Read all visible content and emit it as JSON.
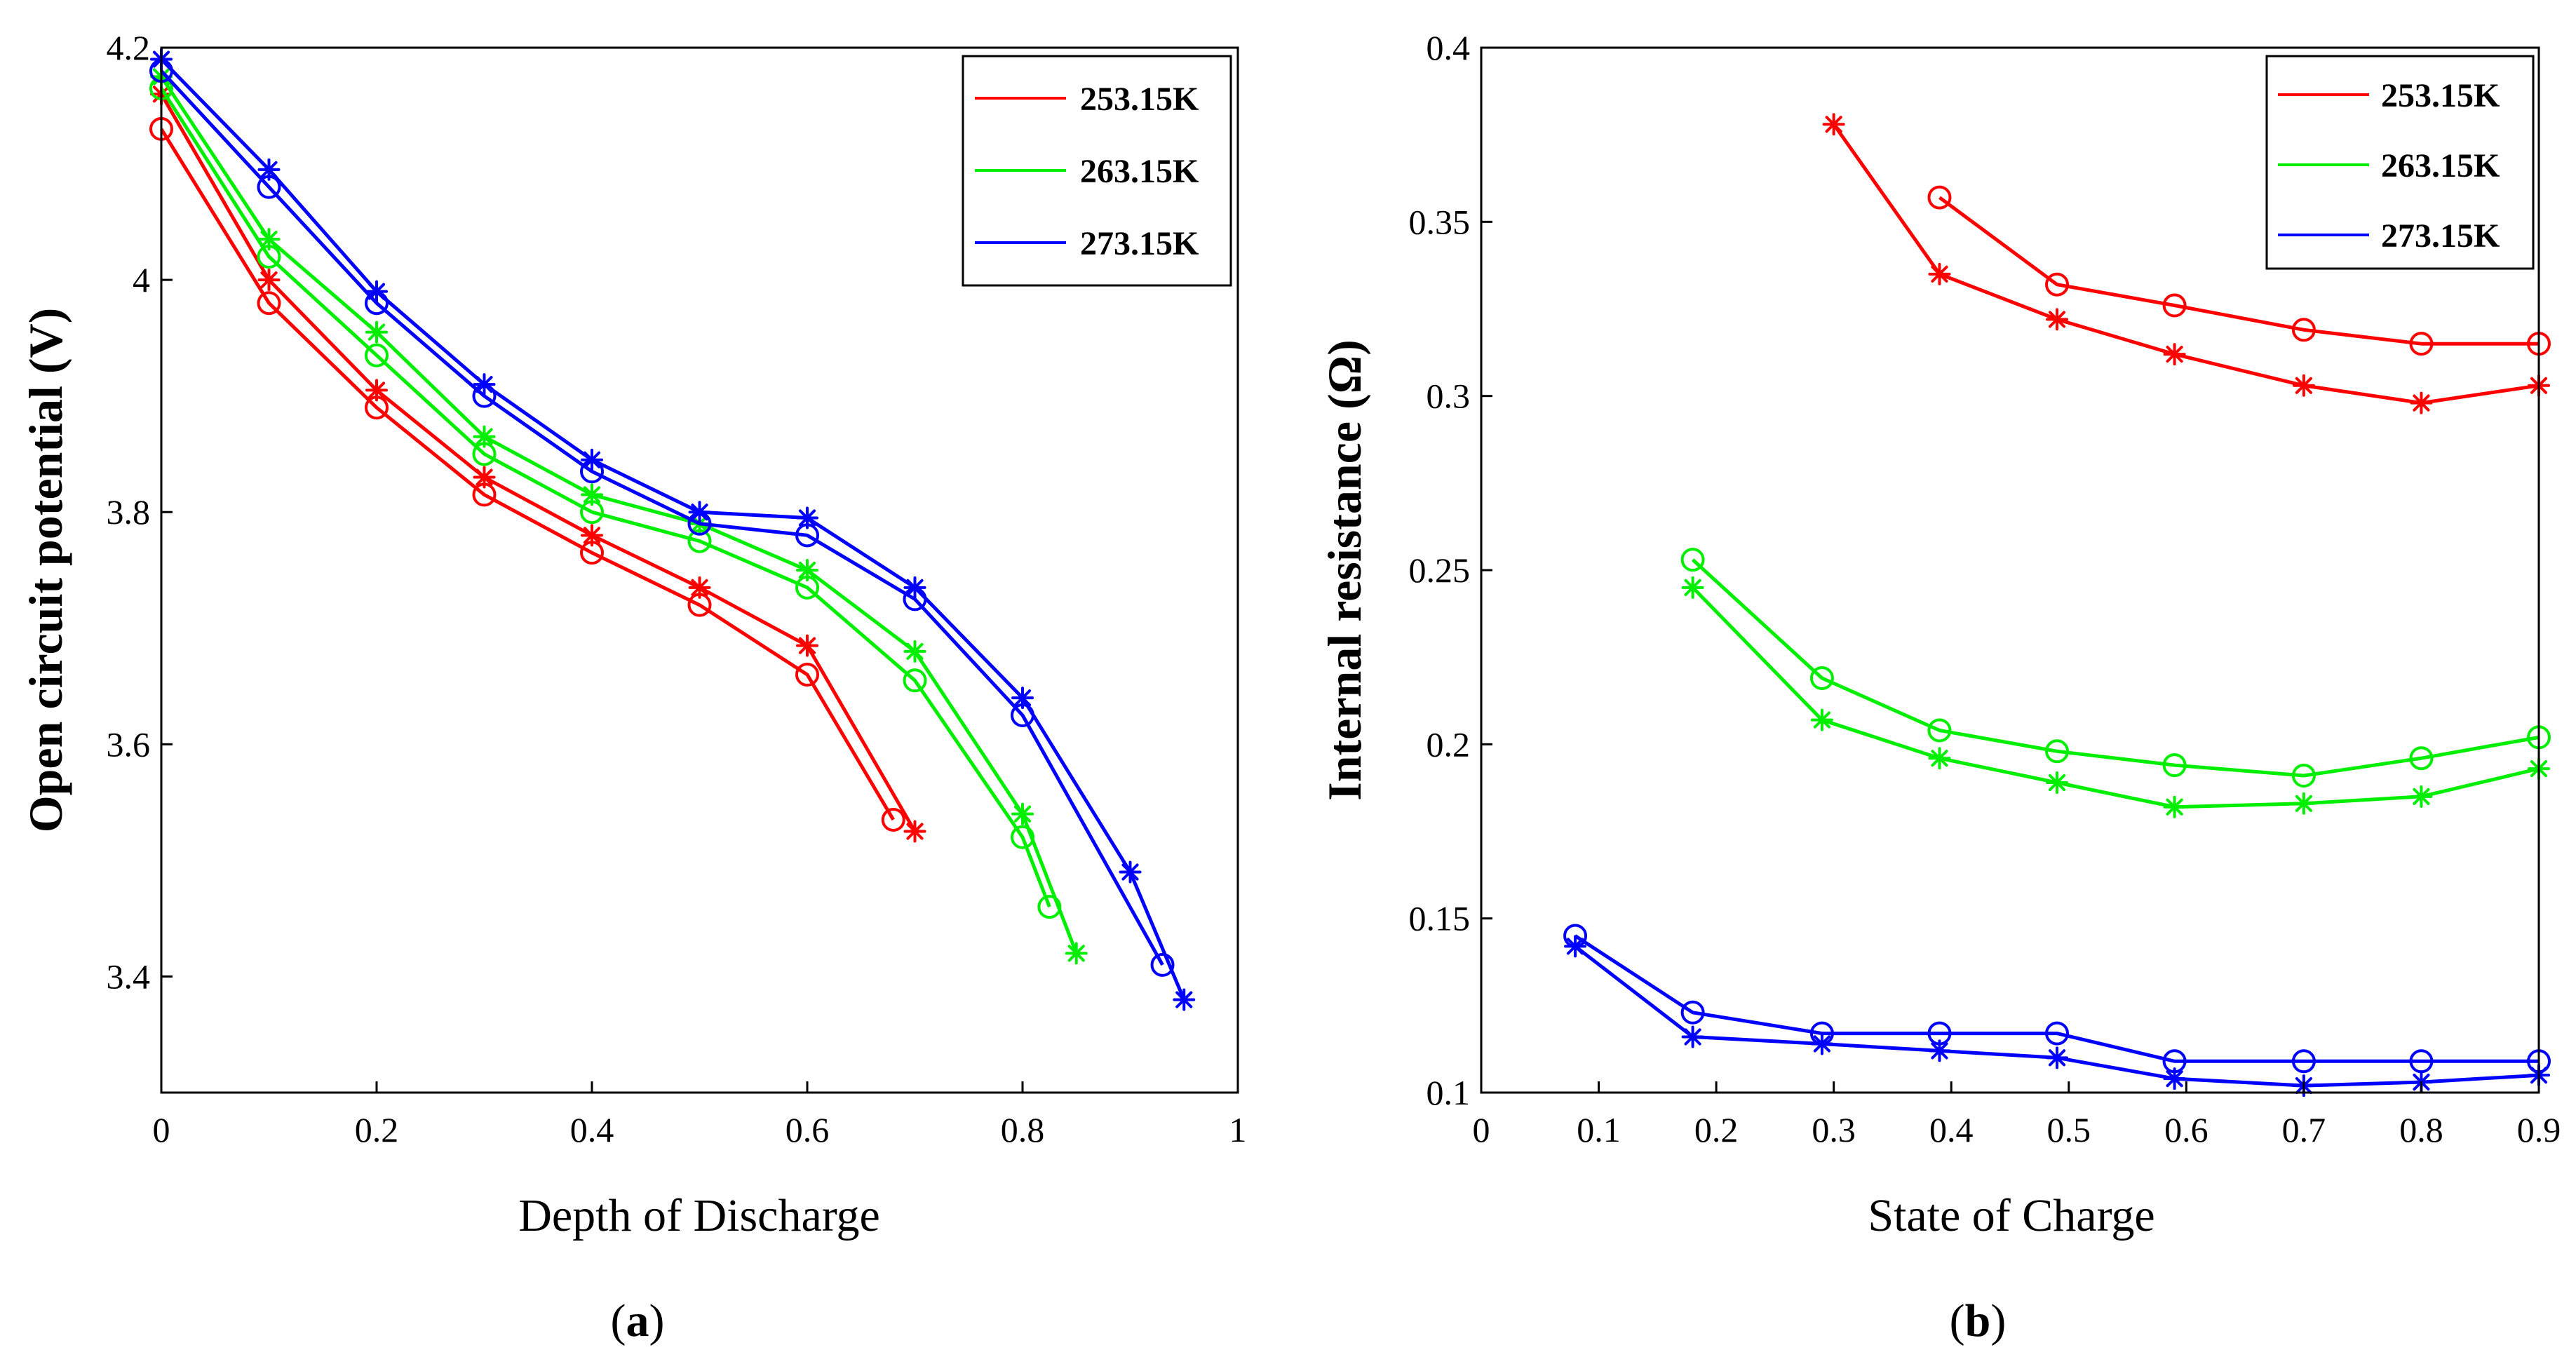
{
  "figure": {
    "panel_a_label": {
      "open": "(",
      "letter": "a",
      "close": ")"
    },
    "panel_b_label": {
      "open": "(",
      "letter": "b",
      "close": ")"
    }
  },
  "chart_data": [
    {
      "id": "a",
      "type": "line",
      "xlabel": "Depth of Discharge",
      "ylabel": "Open circuit potential (V)",
      "xlim": [
        0,
        1
      ],
      "ylim": [
        3.3,
        4.2
      ],
      "xticks": [
        0,
        0.2,
        0.4,
        0.6,
        0.8,
        1
      ],
      "xtick_labels": [
        "0",
        "0.2",
        "0.4",
        "0.6",
        "0.8",
        "1"
      ],
      "yticks": [
        3.4,
        3.6,
        3.8,
        4.0,
        4.2
      ],
      "ytick_labels": [
        "3.4",
        "3.6",
        "3.8",
        "4",
        "4.2"
      ],
      "legend": {
        "position": "top-right",
        "entries": [
          "253.15K",
          "263.15K",
          "273.15K"
        ]
      },
      "series": [
        {
          "name": "253.15K",
          "color": "#ff0000",
          "marker": "star",
          "x": [
            0,
            0.1,
            0.2,
            0.3,
            0.4,
            0.5,
            0.6,
            0.7
          ],
          "y": [
            4.16,
            4.0,
            3.905,
            3.83,
            3.78,
            3.735,
            3.685,
            3.525
          ]
        },
        {
          "name": "253.15K",
          "color": "#ff0000",
          "marker": "circle",
          "x": [
            0,
            0.1,
            0.2,
            0.3,
            0.4,
            0.5,
            0.6,
            0.68
          ],
          "y": [
            4.13,
            3.98,
            3.89,
            3.815,
            3.765,
            3.72,
            3.66,
            3.535
          ]
        },
        {
          "name": "263.15K",
          "color": "#00ee00",
          "marker": "star",
          "x": [
            0,
            0.1,
            0.2,
            0.3,
            0.4,
            0.5,
            0.6,
            0.7,
            0.8,
            0.85
          ],
          "y": [
            4.175,
            4.035,
            3.955,
            3.865,
            3.815,
            3.79,
            3.75,
            3.68,
            3.54,
            3.42
          ]
        },
        {
          "name": "263.15K",
          "color": "#00ee00",
          "marker": "circle",
          "x": [
            0,
            0.1,
            0.2,
            0.3,
            0.4,
            0.5,
            0.6,
            0.7,
            0.8,
            0.825
          ],
          "y": [
            4.165,
            4.02,
            3.935,
            3.85,
            3.8,
            3.775,
            3.735,
            3.655,
            3.52,
            3.46
          ]
        },
        {
          "name": "273.15K",
          "color": "#0000ff",
          "marker": "star",
          "x": [
            0,
            0.1,
            0.2,
            0.3,
            0.4,
            0.5,
            0.6,
            0.7,
            0.8,
            0.9,
            0.95
          ],
          "y": [
            4.19,
            4.095,
            3.99,
            3.91,
            3.845,
            3.8,
            3.795,
            3.735,
            3.64,
            3.49,
            3.38
          ]
        },
        {
          "name": "273.15K",
          "color": "#0000ff",
          "marker": "circle",
          "x": [
            0,
            0.1,
            0.2,
            0.3,
            0.4,
            0.5,
            0.6,
            0.7,
            0.8,
            0.93
          ],
          "y": [
            4.18,
            4.08,
            3.98,
            3.9,
            3.835,
            3.79,
            3.78,
            3.725,
            3.625,
            3.41
          ]
        }
      ]
    },
    {
      "id": "b",
      "type": "line",
      "xlabel": "State of Charge",
      "ylabel": "Internal resistance (Ω)",
      "xlim": [
        0,
        0.9
      ],
      "ylim": [
        0.1,
        0.4
      ],
      "xticks": [
        0,
        0.1,
        0.2,
        0.3,
        0.4,
        0.5,
        0.6,
        0.7,
        0.8,
        0.9
      ],
      "xtick_labels": [
        "0",
        "0.1",
        "0.2",
        "0.3",
        "0.4",
        "0.5",
        "0.6",
        "0.7",
        "0.8",
        "0.9"
      ],
      "yticks": [
        0.1,
        0.15,
        0.2,
        0.25,
        0.3,
        0.35,
        0.4
      ],
      "ytick_labels": [
        "0.1",
        "0.15",
        "0.2",
        "0.25",
        "0.3",
        "0.35",
        "0.4"
      ],
      "legend": {
        "position": "top-right",
        "entries": [
          "253.15K",
          "263.15K",
          "273.15K"
        ]
      },
      "series": [
        {
          "name": "253.15K",
          "color": "#ff0000",
          "marker": "star",
          "x": [
            0.3,
            0.39,
            0.49,
            0.59,
            0.7,
            0.8,
            0.9
          ],
          "y": [
            0.378,
            0.335,
            0.322,
            0.312,
            0.303,
            0.298,
            0.303
          ]
        },
        {
          "name": "253.15K",
          "color": "#ff0000",
          "marker": "circle",
          "x": [
            0.39,
            0.49,
            0.59,
            0.7,
            0.8,
            0.9
          ],
          "y": [
            0.357,
            0.332,
            0.326,
            0.319,
            0.315,
            0.315
          ]
        },
        {
          "name": "263.15K",
          "color": "#00ee00",
          "marker": "star",
          "x": [
            0.18,
            0.29,
            0.39,
            0.49,
            0.59,
            0.7,
            0.8,
            0.9
          ],
          "y": [
            0.245,
            0.207,
            0.196,
            0.189,
            0.182,
            0.183,
            0.185,
            0.193
          ]
        },
        {
          "name": "263.15K",
          "color": "#00ee00",
          "marker": "circle",
          "x": [
            0.18,
            0.29,
            0.39,
            0.49,
            0.59,
            0.7,
            0.8,
            0.9
          ],
          "y": [
            0.253,
            0.219,
            0.204,
            0.198,
            0.194,
            0.191,
            0.196,
            0.202
          ]
        },
        {
          "name": "273.15K",
          "color": "#0000ff",
          "marker": "star",
          "x": [
            0.08,
            0.18,
            0.29,
            0.39,
            0.49,
            0.59,
            0.7,
            0.8,
            0.9
          ],
          "y": [
            0.142,
            0.116,
            0.114,
            0.112,
            0.11,
            0.104,
            0.102,
            0.103,
            0.105
          ]
        },
        {
          "name": "273.15K",
          "color": "#0000ff",
          "marker": "circle",
          "x": [
            0.08,
            0.18,
            0.29,
            0.39,
            0.49,
            0.59,
            0.7,
            0.8,
            0.9
          ],
          "y": [
            0.145,
            0.123,
            0.117,
            0.117,
            0.117,
            0.109,
            0.109,
            0.109,
            0.109
          ]
        }
      ]
    }
  ]
}
